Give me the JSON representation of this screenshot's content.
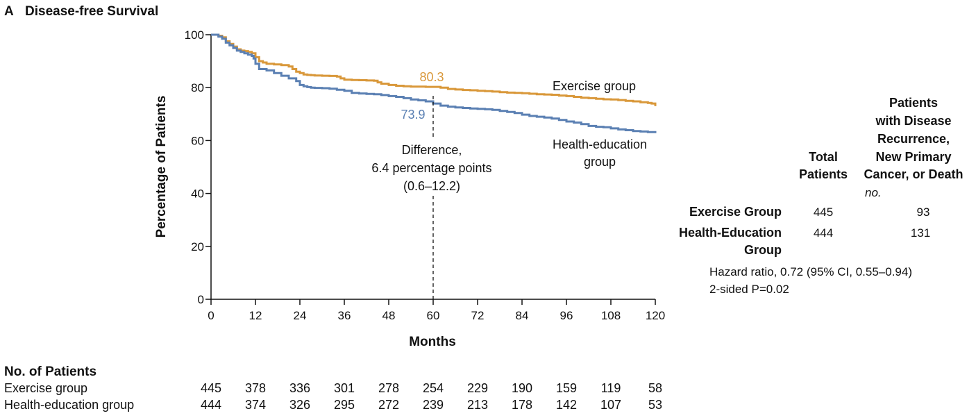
{
  "chart_data": {
    "type": "line",
    "panel_letter": "A",
    "title": "Disease-free Survival",
    "xlabel": "Months",
    "ylabel": "Percentage of Patients",
    "xlim": [
      0,
      120
    ],
    "ylim": [
      0,
      100
    ],
    "xticks": [
      0,
      12,
      24,
      36,
      48,
      60,
      72,
      84,
      96,
      108,
      120
    ],
    "yticks": [
      0,
      20,
      40,
      60,
      80,
      100
    ],
    "grid": false,
    "series": [
      {
        "name": "Exercise group",
        "color": "#d9983a",
        "x": [
          0,
          2,
          3,
          4,
          5,
          6,
          7,
          8,
          9,
          10,
          11,
          12,
          13,
          14,
          15,
          17,
          19,
          21,
          22,
          23,
          24,
          25,
          26,
          27,
          28,
          30,
          32,
          34,
          35,
          36,
          38,
          40,
          42,
          44,
          45,
          46,
          48,
          50,
          52,
          54,
          56,
          58,
          60,
          62,
          64,
          66,
          68,
          70,
          72,
          74,
          76,
          78,
          80,
          82,
          84,
          86,
          88,
          90,
          92,
          94,
          96,
          98,
          100,
          102,
          104,
          106,
          108,
          110,
          112,
          114,
          116,
          118,
          119,
          120
        ],
        "y": [
          100,
          99.6,
          99,
          97.5,
          96.5,
          95.5,
          94.5,
          94,
          93.8,
          93.5,
          93,
          91.5,
          90,
          89.5,
          89,
          88.8,
          88.5,
          88,
          87,
          86,
          85.5,
          85,
          84.8,
          84.7,
          84.6,
          84.5,
          84.4,
          84.2,
          83.5,
          83,
          82.9,
          82.8,
          82.7,
          82.6,
          82,
          81.5,
          81,
          80.7,
          80.5,
          80.4,
          80.4,
          80.3,
          80.3,
          80,
          79.5,
          79.3,
          79.1,
          79,
          78.8,
          78.7,
          78.5,
          78.3,
          78.1,
          78,
          77.9,
          77.7,
          77.5,
          77.4,
          77.3,
          77,
          76.8,
          76.5,
          76.2,
          76,
          75.8,
          75.6,
          75.5,
          75.3,
          75,
          74.8,
          74.5,
          74.2,
          74,
          73
        ]
      },
      {
        "name": "Health-education group",
        "color": "#5b80b3",
        "x": [
          0,
          2,
          3,
          4,
          5,
          6,
          7,
          8,
          9,
          10,
          11,
          11.5,
          12,
          13,
          15,
          17,
          19,
          21,
          23,
          24,
          25,
          26,
          27,
          28,
          30,
          32,
          34,
          36,
          38,
          40,
          42,
          44,
          46,
          48,
          50,
          52,
          54,
          56,
          58,
          60,
          62,
          64,
          66,
          68,
          70,
          72,
          74,
          76,
          78,
          80,
          82,
          84,
          86,
          88,
          90,
          92,
          94,
          96,
          98,
          100,
          102,
          104,
          106,
          108,
          110,
          112,
          114,
          116,
          118,
          120
        ],
        "y": [
          100,
          99.3,
          98.5,
          97,
          96,
          95,
          94,
          93.5,
          93,
          92.5,
          92,
          91,
          89,
          87,
          86.5,
          85.5,
          84.5,
          83.5,
          82.5,
          81,
          80.5,
          80.2,
          80,
          79.9,
          79.8,
          79.6,
          79.2,
          78.8,
          78,
          77.8,
          77.6,
          77.5,
          77.2,
          76.8,
          76.5,
          76,
          75.5,
          75.2,
          74.8,
          74,
          73.2,
          72.8,
          72.5,
          72.3,
          72.1,
          72,
          71.8,
          71.6,
          71.2,
          70.8,
          70.4,
          69.8,
          69.3,
          69,
          68.7,
          68.3,
          67.8,
          67.2,
          66.8,
          66.2,
          65.5,
          65.2,
          65,
          64.6,
          64.2,
          63.9,
          63.6,
          63.4,
          63.2,
          62.8
        ]
      }
    ],
    "annotations": {
      "exercise_value": "80.3",
      "health_value": "73.9",
      "difference_line1": "Difference,",
      "difference_line2": "6.4 percentage points",
      "difference_line3": "(0.6–12.2)",
      "difference_at_month": 60,
      "exercise_label": "Exercise group",
      "health_label_line1": "Health-education",
      "health_label_line2": "group"
    },
    "table": {
      "col_total_line1": "Total",
      "col_total_line2": "Patients",
      "col_events_line1": "Patients",
      "col_events_line2": "with Disease",
      "col_events_line3": "Recurrence,",
      "col_events_line4": "New Primary",
      "col_events_line5": "Cancer, or Death",
      "unit": "no.",
      "rows": [
        {
          "label_line1": "Exercise Group",
          "label_line2": "",
          "total": "445",
          "events": "93"
        },
        {
          "label_line1": "Health-Education",
          "label_line2": "Group",
          "total": "444",
          "events": "131"
        }
      ],
      "hazard_ratio": "Hazard ratio, 0.72 (95% CI, 0.55–0.94)",
      "p_value": "2-sided P=0.02"
    },
    "at_risk": {
      "title": "No. of Patients",
      "rows": [
        {
          "label": "Exercise group",
          "values": [
            "445",
            "378",
            "336",
            "301",
            "278",
            "254",
            "229",
            "190",
            "159",
            "119",
            "58"
          ]
        },
        {
          "label": "Health-education group",
          "values": [
            "444",
            "374",
            "326",
            "295",
            "272",
            "239",
            "213",
            "178",
            "142",
            "107",
            "53"
          ]
        }
      ]
    }
  }
}
